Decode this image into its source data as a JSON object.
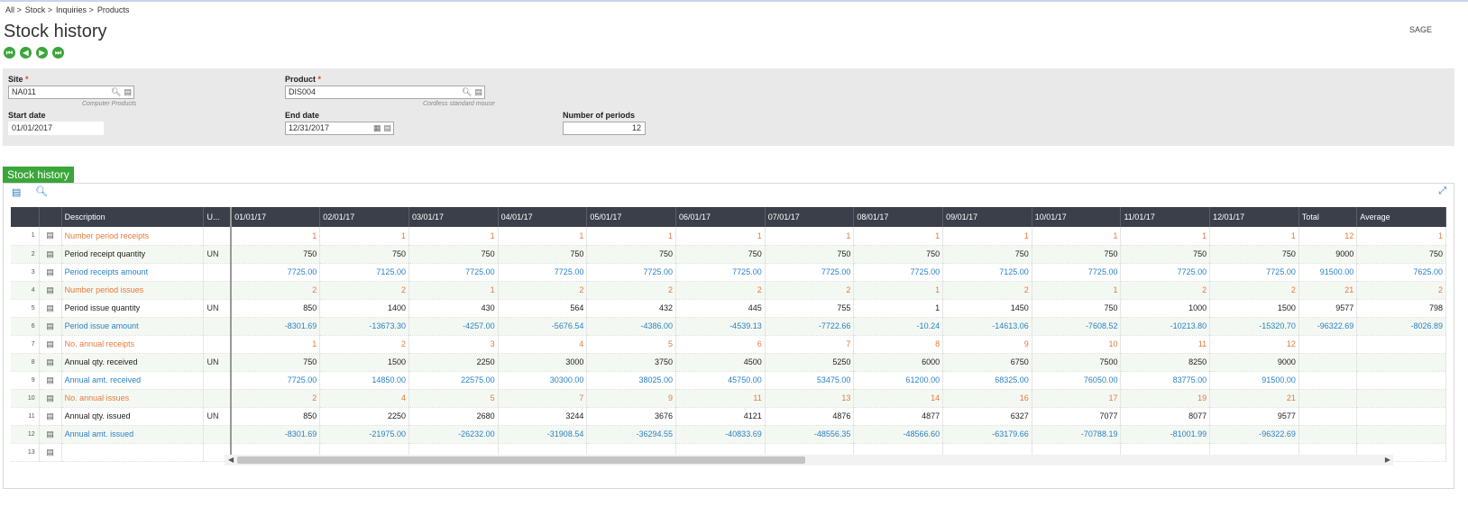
{
  "breadcrumb": [
    "All >",
    "Stock >",
    "Inquiries >",
    "Products"
  ],
  "page_title": "Stock history",
  "brand": "SAGE",
  "nav_buttons": [
    "first-icon",
    "previous-icon",
    "next-icon",
    "last-icon"
  ],
  "criteria": {
    "site_label": "Site",
    "site_value": "NA011",
    "site_desc": "Computer Products",
    "product_label": "Product",
    "product_value": "DIS004",
    "product_desc": "Cordless standard mouse",
    "start_label": "Start date",
    "start_value": "01/01/2017",
    "end_label": "End date",
    "end_value": "12/31/2017",
    "periods_label": "Number of periods",
    "periods_value": "12",
    "required_mark": "*"
  },
  "section_title": "Stock history",
  "colors": {
    "accent": "#3aa63a",
    "header": "#3b3f4a",
    "orange": "#e47a3c",
    "blue": "#2a82c4"
  },
  "grid": {
    "headers": [
      "",
      "",
      "Description",
      "U...",
      "01/01/17",
      "02/01/17",
      "03/01/17",
      "04/01/17",
      "05/01/17",
      "06/01/17",
      "07/01/17",
      "08/01/17",
      "09/01/17",
      "10/01/17",
      "11/01/17",
      "12/01/17",
      "Total",
      "Average"
    ],
    "rows": [
      {
        "n": "1",
        "color": "orange",
        "desc": "Number period receipts",
        "unit": "",
        "vals": [
          "1",
          "1",
          "1",
          "1",
          "1",
          "1",
          "1",
          "1",
          "1",
          "1",
          "1",
          "1",
          "12",
          "1"
        ]
      },
      {
        "n": "2",
        "color": "black",
        "desc": "Period receipt quantity",
        "unit": "UN",
        "vals": [
          "750",
          "750",
          "750",
          "750",
          "750",
          "750",
          "750",
          "750",
          "750",
          "750",
          "750",
          "750",
          "9000",
          "750"
        ]
      },
      {
        "n": "3",
        "color": "blue",
        "desc": "Period receipts amount",
        "unit": "",
        "vals": [
          "7725.00",
          "7125.00",
          "7725.00",
          "7725.00",
          "7725.00",
          "7725.00",
          "7725.00",
          "7725.00",
          "7125.00",
          "7725.00",
          "7725.00",
          "7725.00",
          "91500.00",
          "7625.00"
        ]
      },
      {
        "n": "4",
        "color": "orange",
        "desc": "Number period issues",
        "unit": "",
        "vals": [
          "2",
          "2",
          "1",
          "2",
          "2",
          "2",
          "2",
          "1",
          "2",
          "1",
          "2",
          "2",
          "21",
          "2"
        ]
      },
      {
        "n": "5",
        "color": "black",
        "desc": "Period issue quantity",
        "unit": "UN",
        "vals": [
          "850",
          "1400",
          "430",
          "564",
          "432",
          "445",
          "755",
          "1",
          "1450",
          "750",
          "1000",
          "1500",
          "9577",
          "798"
        ]
      },
      {
        "n": "6",
        "color": "blue",
        "desc": "Period issue amount",
        "unit": "",
        "vals": [
          "-8301.69",
          "-13673.30",
          "-4257.00",
          "-5676.54",
          "-4386.00",
          "-4539.13",
          "-7722.66",
          "-10.24",
          "-14613.06",
          "-7608.52",
          "-10213.80",
          "-15320.70",
          "-96322.69",
          "-8026.89"
        ]
      },
      {
        "n": "7",
        "color": "orange",
        "desc": "No. annual receipts",
        "unit": "",
        "vals": [
          "1",
          "2",
          "3",
          "4",
          "5",
          "6",
          "7",
          "8",
          "9",
          "10",
          "11",
          "12",
          "",
          ""
        ]
      },
      {
        "n": "8",
        "color": "black",
        "desc": "Annual qty. received",
        "unit": "UN",
        "vals": [
          "750",
          "1500",
          "2250",
          "3000",
          "3750",
          "4500",
          "5250",
          "6000",
          "6750",
          "7500",
          "8250",
          "9000",
          "",
          ""
        ]
      },
      {
        "n": "9",
        "color": "blue",
        "desc": "Annual amt. received",
        "unit": "",
        "vals": [
          "7725.00",
          "14850.00",
          "22575.00",
          "30300.00",
          "38025.00",
          "45750.00",
          "53475.00",
          "61200.00",
          "68325.00",
          "76050.00",
          "83775.00",
          "91500.00",
          "",
          ""
        ]
      },
      {
        "n": "10",
        "color": "orange",
        "desc": "No. annual issues",
        "unit": "",
        "vals": [
          "2",
          "4",
          "5",
          "7",
          "9",
          "11",
          "13",
          "14",
          "16",
          "17",
          "19",
          "21",
          "",
          ""
        ]
      },
      {
        "n": "11",
        "color": "black",
        "desc": "Annual qty. issued",
        "unit": "UN",
        "vals": [
          "850",
          "2250",
          "2680",
          "3244",
          "3676",
          "4121",
          "4876",
          "4877",
          "6327",
          "7077",
          "8077",
          "9577",
          "",
          ""
        ]
      },
      {
        "n": "12",
        "color": "blue",
        "desc": "Annual amt. issued",
        "unit": "",
        "vals": [
          "-8301.69",
          "-21975.00",
          "-26232.00",
          "-31908.54",
          "-36294.55",
          "-40833.69",
          "-48556.35",
          "-48566.60",
          "-63179.66",
          "-70788.19",
          "-81001.99",
          "-96322.69",
          "",
          ""
        ]
      },
      {
        "n": "13",
        "color": "black",
        "desc": "",
        "unit": "",
        "vals": [
          "",
          "",
          "",
          "",
          "",
          "",
          "",
          "",
          "",
          "",
          "",
          "",
          "",
          ""
        ]
      }
    ]
  }
}
